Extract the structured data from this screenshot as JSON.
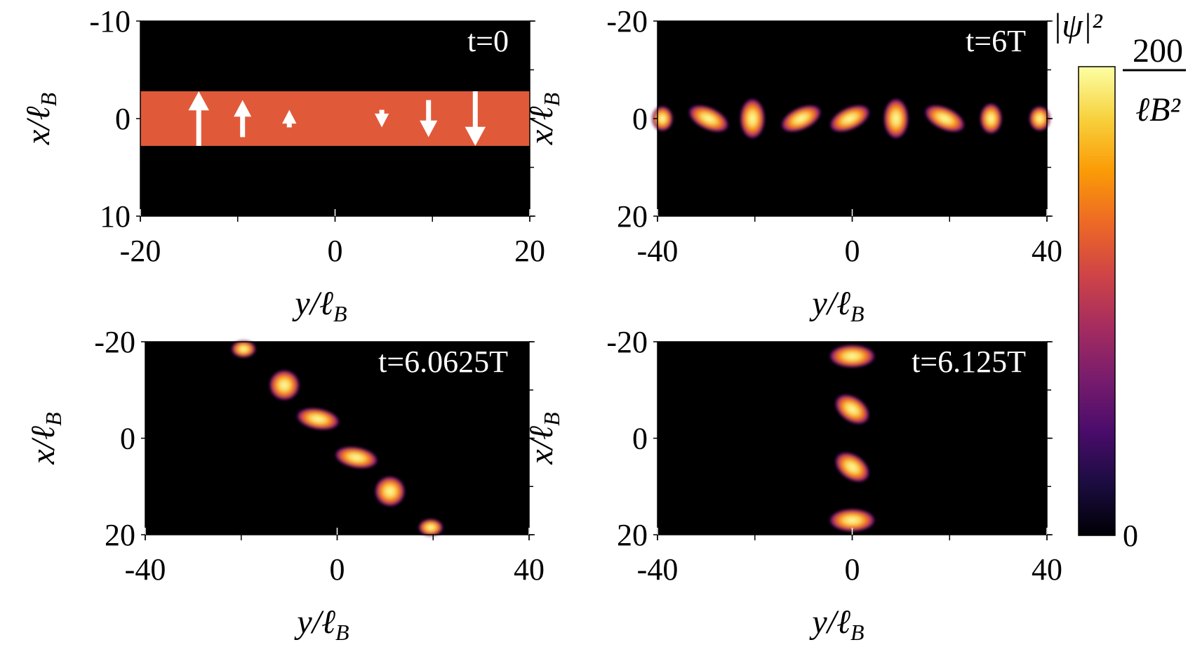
{
  "chart_data": [
    {
      "type": "heatmap",
      "panel": "top-left",
      "annotation": "t=0",
      "xlabel": "y/ℓB",
      "ylabel": "x/ℓB",
      "xlim": [
        -20,
        20
      ],
      "ylim": [
        -10,
        10
      ],
      "xticks": [
        "-20",
        "0",
        "20"
      ],
      "yticks": [
        "-10",
        "0",
        "10"
      ],
      "y_inverted": true,
      "band": {
        "x_range": [
          -2.8,
          2.8
        ],
        "color": "#e05a3a"
      },
      "arrows": [
        {
          "y": -14,
          "direction": "up",
          "length": 5.6
        },
        {
          "y": -9.5,
          "direction": "up",
          "length": 3.8
        },
        {
          "y": -4.7,
          "direction": "up",
          "length": 1.8
        },
        {
          "y": 4.8,
          "direction": "down",
          "length": 1.8
        },
        {
          "y": 9.6,
          "direction": "down",
          "length": 3.8
        },
        {
          "y": 14.4,
          "direction": "down",
          "length": 5.6
        }
      ]
    },
    {
      "type": "heatmap",
      "panel": "top-right",
      "annotation": "t=6T",
      "xlabel": "y/ℓB",
      "ylabel": "x/ℓB",
      "xlim": [
        -40,
        40
      ],
      "ylim": [
        -20,
        20
      ],
      "xticks": [
        "-40",
        "0",
        "40"
      ],
      "yticks": [
        "-20",
        "0",
        "20"
      ],
      "y_inverted": true,
      "blobs": [
        {
          "y": -39,
          "x": 0,
          "ry": 2.2,
          "rx": 2.6,
          "angle": 0
        },
        {
          "y": -29.5,
          "x": 0,
          "ry": 4.5,
          "rx": 2.3,
          "angle": 25
        },
        {
          "y": -20.5,
          "x": 0,
          "ry": 2.6,
          "rx": 4.2,
          "angle": 0
        },
        {
          "y": -10.5,
          "x": 0,
          "ry": 4.5,
          "rx": 2.3,
          "angle": -25
        },
        {
          "y": -0.5,
          "x": 0,
          "ry": 4.5,
          "rx": 2.3,
          "angle": -25
        },
        {
          "y": 9,
          "x": 0,
          "ry": 2.6,
          "rx": 4.2,
          "angle": 0
        },
        {
          "y": 19,
          "x": 0,
          "ry": 4.5,
          "rx": 2.3,
          "angle": 25
        },
        {
          "y": 28.5,
          "x": 0,
          "ry": 2.3,
          "rx": 3.2,
          "angle": 0
        },
        {
          "y": 38.5,
          "x": 0,
          "ry": 2.2,
          "rx": 2.6,
          "angle": 0
        }
      ]
    },
    {
      "type": "heatmap",
      "panel": "bottom-left",
      "annotation": "t=6.0625T",
      "xlabel": "y/ℓB",
      "ylabel": "x/ℓB",
      "xlim": [
        -40,
        40
      ],
      "ylim": [
        -20,
        20
      ],
      "xticks": [
        "-40",
        "0",
        "40"
      ],
      "yticks": [
        "-20",
        "0",
        "20"
      ],
      "y_inverted": true,
      "blobs": [
        {
          "y": -19.5,
          "x": -18.5,
          "ry": 2.6,
          "rx": 1.8,
          "angle": 0
        },
        {
          "y": -11,
          "x": -11,
          "ry": 3.2,
          "rx": 3.2,
          "angle": -45
        },
        {
          "y": -4,
          "x": -4,
          "ry": 4.6,
          "rx": 2.2,
          "angle": 10
        },
        {
          "y": 4,
          "x": 4,
          "ry": 4.6,
          "rx": 2.2,
          "angle": 10
        },
        {
          "y": 11,
          "x": 11,
          "ry": 3.2,
          "rx": 3.2,
          "angle": -45
        },
        {
          "y": 19.5,
          "x": 18.5,
          "ry": 2.6,
          "rx": 1.8,
          "angle": 0
        }
      ]
    },
    {
      "type": "heatmap",
      "panel": "bottom-right",
      "annotation": "t=6.125T",
      "xlabel": "y/ℓB",
      "ylabel": "x/ℓB",
      "xlim": [
        -40,
        40
      ],
      "ylim": [
        -20,
        20
      ],
      "xticks": [
        "-40",
        "0",
        "40"
      ],
      "yticks": [
        "-20",
        "0",
        "20"
      ],
      "y_inverted": true,
      "blobs": [
        {
          "y": 0,
          "x": -17,
          "ry": 4.8,
          "rx": 2.4,
          "angle": 0
        },
        {
          "y": 0,
          "x": -6,
          "ry": 4.0,
          "rx": 2.6,
          "angle": 35
        },
        {
          "y": 0,
          "x": 6,
          "ry": 4.0,
          "rx": 2.6,
          "angle": 35
        },
        {
          "y": 0,
          "x": 17,
          "ry": 4.8,
          "rx": 2.4,
          "angle": 0
        }
      ]
    }
  ],
  "colorbar": {
    "label": "|ψ|²",
    "max_numerator": "200",
    "max_denominator": "ℓB²",
    "min_label": "0",
    "colormap": [
      "#000004",
      "#1b0c41",
      "#4a0c6b",
      "#781c6d",
      "#a52c60",
      "#cf4446",
      "#ed6925",
      "#fb9b06",
      "#f7d13d",
      "#fcffa4"
    ]
  }
}
